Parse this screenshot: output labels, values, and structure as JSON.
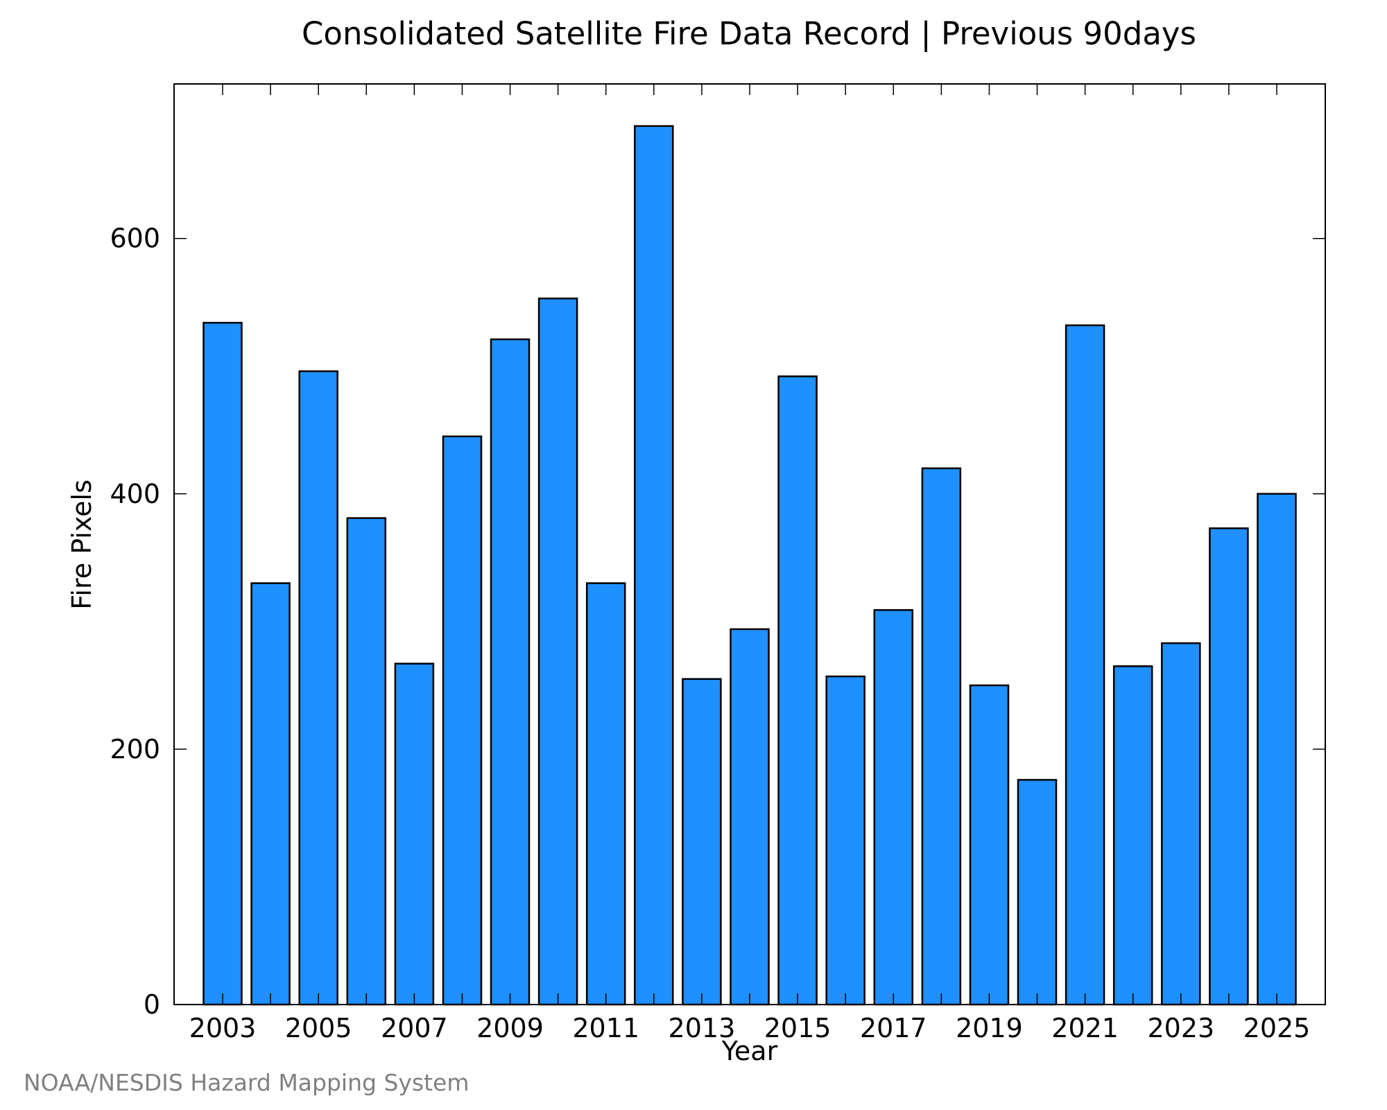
{
  "chart_data": {
    "type": "bar",
    "title": "Consolidated Satellite Fire Data Record | Previous 90days",
    "xlabel": "Year",
    "ylabel": "Fire Pixels",
    "categories": [
      "2003",
      "2004",
      "2005",
      "2006",
      "2007",
      "2008",
      "2009",
      "2010",
      "2011",
      "2012",
      "2013",
      "2014",
      "2015",
      "2016",
      "2017",
      "2018",
      "2019",
      "2020",
      "2021",
      "2022",
      "2023",
      "2024",
      "2025"
    ],
    "x_tick_labels": [
      "2003",
      "2005",
      "2007",
      "2009",
      "2011",
      "2013",
      "2015",
      "2017",
      "2019",
      "2021",
      "2023",
      "2025"
    ],
    "y_tick_labels": [
      "0",
      "200",
      "400",
      "600"
    ],
    "y_ticks": [
      0,
      200,
      400,
      600
    ],
    "values": [
      534,
      330,
      496,
      381,
      267,
      445,
      521,
      553,
      330,
      688,
      255,
      294,
      492,
      257,
      309,
      420,
      250,
      176,
      532,
      265,
      283,
      373,
      400
    ],
    "ylim": [
      0,
      721
    ],
    "grid": false,
    "legend": "none",
    "bar_color": "#1e90ff",
    "bar_edge_color": "#000000",
    "credit": "NOAA/NESDIS Hazard Mapping System"
  }
}
